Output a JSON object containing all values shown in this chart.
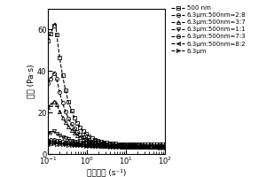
{
  "ylabel": "粘度 (Pa·s)",
  "xlabel": "剪切速率 (s⁻¹)",
  "xlim": [
    0.1,
    100
  ],
  "ylim": [
    0,
    70
  ],
  "yticks": [
    0,
    20,
    40,
    60
  ],
  "series": [
    {
      "label": "500 nm",
      "marker": "s",
      "peak_y": 64,
      "peak_x": 0.155,
      "tail_y": 4.5,
      "shear_thin": 1.35,
      "rise_pow": 0.4,
      "filled": false
    },
    {
      "label": "6.3μm:500nm=2:8",
      "marker": "o",
      "peak_y": 40,
      "peak_x": 0.155,
      "tail_y": 4.0,
      "shear_thin": 1.3,
      "rise_pow": 0.4,
      "filled": false
    },
    {
      "label": "6.3μm:500nm=3:7",
      "marker": "^",
      "peak_y": 26,
      "peak_x": 0.155,
      "tail_y": 3.8,
      "shear_thin": 1.1,
      "rise_pow": 0.4,
      "filled": false
    },
    {
      "label": "6.3μm:500nm=1:1",
      "marker": "v",
      "peak_y": 11,
      "peak_x": 0.14,
      "tail_y": 3.5,
      "shear_thin": 0.85,
      "rise_pow": 0.5,
      "filled": false
    },
    {
      "label": "6.3μm:500nm=7:3",
      "marker": "o",
      "peak_y": 7,
      "peak_x": 0.13,
      "tail_y": 3.2,
      "shear_thin": 0.55,
      "rise_pow": 0.6,
      "filled": false
    },
    {
      "label": "6.3μm:500nm=8:2",
      "marker": "<",
      "peak_y": 6,
      "peak_x": 0.13,
      "tail_y": 3.0,
      "shear_thin": 0.45,
      "rise_pow": 0.6,
      "filled": false
    },
    {
      "label": "6.3μm",
      "marker": ">",
      "peak_y": 5,
      "peak_x": 0.13,
      "tail_y": 3.0,
      "shear_thin": 0.35,
      "rise_pow": 0.7,
      "filled": false
    }
  ],
  "legend_labels_top": "500 nm",
  "background_color": "#ffffff",
  "figsize": [
    3.0,
    2.0
  ],
  "dpi": 100
}
